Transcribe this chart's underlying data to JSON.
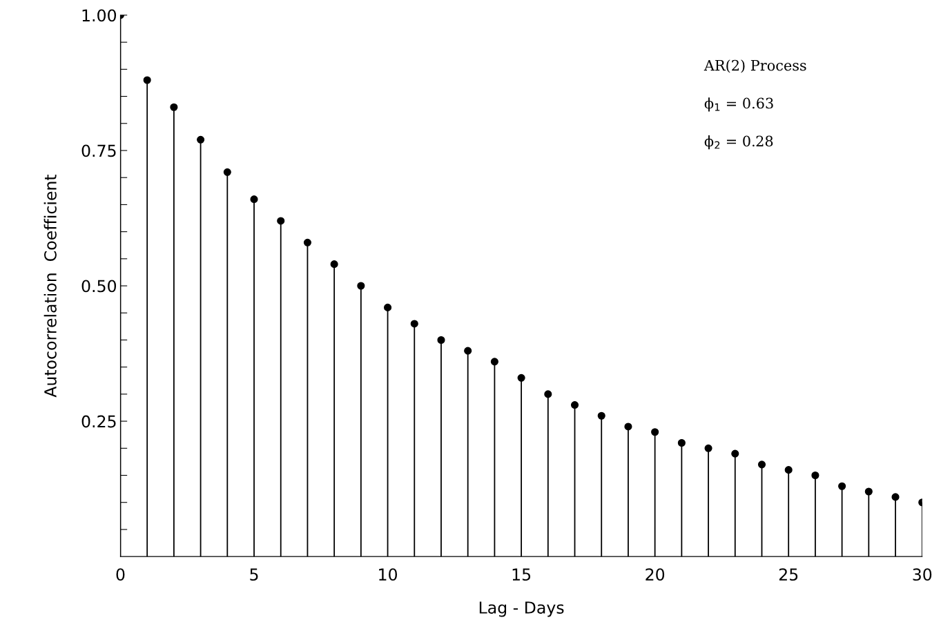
{
  "chart_data": {
    "type": "lollipop",
    "xlabel": "Lag - Days",
    "ylabel": "Autocorrelation  Coefficient",
    "annotations": [
      "AR(2) Process",
      "ϕ$_{1}$ = 0.63",
      "ϕ$_{2}$ = 0.28"
    ],
    "x": [
      0,
      1,
      2,
      3,
      4,
      5,
      6,
      7,
      8,
      9,
      10,
      11,
      12,
      13,
      14,
      15,
      16,
      17,
      18,
      19,
      20,
      21,
      22,
      23,
      24,
      25,
      26,
      27,
      28,
      29,
      30
    ],
    "series": [
      {
        "color": "#000000",
        "values": [
          1.0,
          0.88,
          0.83,
          0.77,
          0.71,
          0.66,
          0.62,
          0.58,
          0.54,
          0.5,
          0.46,
          0.43,
          0.4,
          0.38,
          0.36,
          0.33,
          0.3,
          0.28,
          0.26,
          0.24,
          0.23,
          0.21,
          0.2,
          0.19,
          0.17,
          0.16,
          0.15,
          0.13,
          0.12,
          0.11,
          0.1
        ]
      }
    ],
    "xlim": [
      0,
      30
    ],
    "ylim": [
      0,
      1.0
    ],
    "xticks": [
      0,
      5,
      10,
      15,
      20,
      25,
      30
    ],
    "yticks": [
      {
        "value": 0.05,
        "label": null
      },
      {
        "value": 0.1,
        "label": null
      },
      {
        "value": 0.15,
        "label": null
      },
      {
        "value": 0.2,
        "label": null
      },
      {
        "value": 0.25,
        "label": "0.25"
      },
      {
        "value": 0.3,
        "label": null
      },
      {
        "value": 0.35,
        "label": null
      },
      {
        "value": 0.4,
        "label": null
      },
      {
        "value": 0.45,
        "label": null
      },
      {
        "value": 0.5,
        "label": "0.50"
      },
      {
        "value": 0.55,
        "label": null
      },
      {
        "value": 0.6,
        "label": null
      },
      {
        "value": 0.65,
        "label": null
      },
      {
        "value": 0.7,
        "label": null
      },
      {
        "value": 0.75,
        "label": "0.75"
      },
      {
        "value": 0.8,
        "label": null
      },
      {
        "value": 0.85,
        "label": null
      },
      {
        "value": 0.9,
        "label": null
      },
      {
        "value": 0.95,
        "label": null
      },
      {
        "value": 1.0,
        "label": "1.00"
      }
    ],
    "marker": "circle",
    "grid": false,
    "legend": false
  }
}
